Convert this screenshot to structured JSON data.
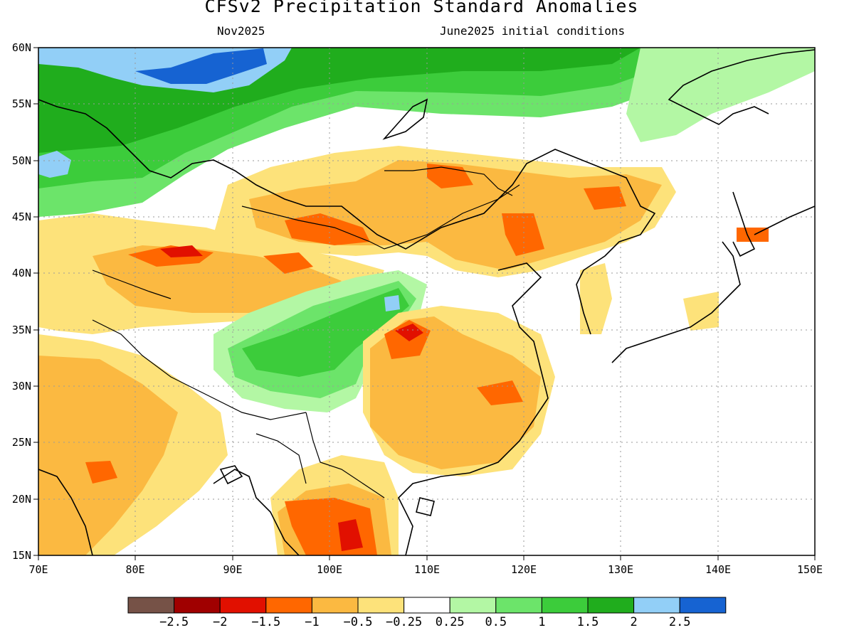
{
  "header": {
    "title": "CFSv2 Precipitation Standard Anomalies",
    "month": "Nov2025",
    "init": "June2025 initial conditions"
  },
  "axes": {
    "lat_labels": [
      "60N",
      "55N",
      "50N",
      "45N",
      "40N",
      "35N",
      "30N",
      "25N",
      "20N",
      "15N"
    ],
    "lon_labels": [
      "70E",
      "80E",
      "90E",
      "100E",
      "110E",
      "120E",
      "130E",
      "140E",
      "150E"
    ]
  },
  "colorbar": {
    "colors": [
      "#765247",
      "#a00000",
      "#e11000",
      "#ff6700",
      "#fbb941",
      "#fde27a",
      "#ffffff",
      "#b3f7a4",
      "#6ce46a",
      "#3ccc3b",
      "#20ad1d",
      "#92cff7",
      "#1663d2"
    ],
    "labels": [
      "-2.5",
      "-2",
      "-1.5",
      "-1",
      "-0.5",
      "-0.25",
      "0.25",
      "0.5",
      "1",
      "1.5",
      "2",
      "2.5"
    ]
  },
  "map": {
    "region": "East Asia",
    "extent_lon": [
      70,
      150
    ],
    "extent_lat": [
      15,
      60
    ]
  }
}
